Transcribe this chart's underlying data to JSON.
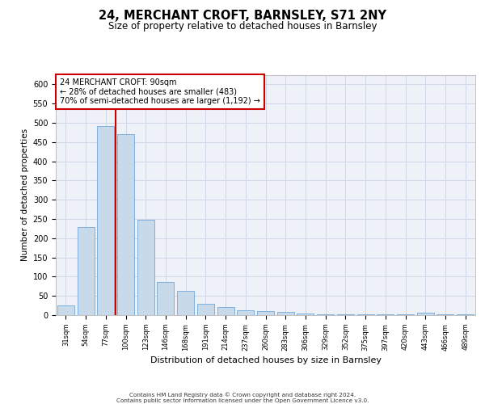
{
  "title1": "24, MERCHANT CROFT, BARNSLEY, S71 2NY",
  "title2": "Size of property relative to detached houses in Barnsley",
  "xlabel": "Distribution of detached houses by size in Barnsley",
  "ylabel": "Number of detached properties",
  "categories": [
    "31sqm",
    "54sqm",
    "77sqm",
    "100sqm",
    "123sqm",
    "146sqm",
    "168sqm",
    "191sqm",
    "214sqm",
    "237sqm",
    "260sqm",
    "283sqm",
    "306sqm",
    "329sqm",
    "352sqm",
    "375sqm",
    "397sqm",
    "420sqm",
    "443sqm",
    "466sqm",
    "489sqm"
  ],
  "values": [
    25,
    230,
    492,
    470,
    248,
    87,
    62,
    30,
    22,
    12,
    10,
    9,
    5,
    3,
    2,
    2,
    2,
    2,
    6,
    2,
    3
  ],
  "bar_color": "#c8d9ea",
  "bar_edge_color": "#5b9bd5",
  "vline_x": 2.5,
  "vline_color": "#cc0000",
  "annotation_text": "24 MERCHANT CROFT: 90sqm\n← 28% of detached houses are smaller (483)\n70% of semi-detached houses are larger (1,192) →",
  "annotation_box_color": "#ffffff",
  "annotation_box_edge": "#cc0000",
  "ylim": [
    0,
    625
  ],
  "yticks": [
    0,
    50,
    100,
    150,
    200,
    250,
    300,
    350,
    400,
    450,
    500,
    550,
    600
  ],
  "footer": "Contains HM Land Registry data © Crown copyright and database right 2024.\nContains public sector information licensed under the Open Government Licence v3.0.",
  "grid_color": "#d0d8e8",
  "bg_color": "#eef2f8"
}
